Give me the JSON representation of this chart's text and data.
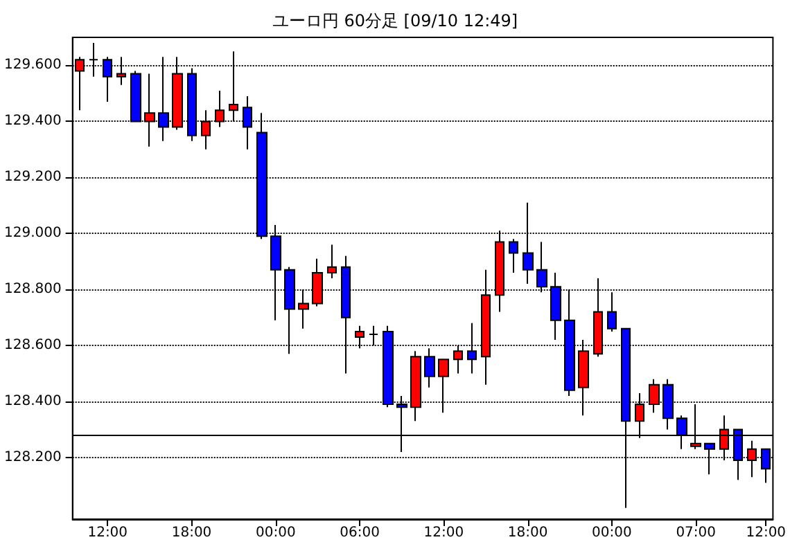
{
  "chart_data": {
    "type": "candlestick",
    "title": "ユーロ円 60分足 [09/10 12:49]",
    "categories": [
      null,
      null,
      "12:00",
      null,
      null,
      null,
      null,
      null,
      "18:00",
      null,
      null,
      null,
      null,
      null,
      "00:00",
      null,
      null,
      null,
      null,
      null,
      "06:00",
      null,
      null,
      null,
      null,
      null,
      "12:00",
      null,
      null,
      null,
      null,
      null,
      "18:00",
      null,
      null,
      null,
      null,
      null,
      "00:00",
      null,
      null,
      null,
      null,
      null,
      "07:00",
      null,
      null,
      null,
      null,
      "12:00"
    ],
    "ohlc": [
      [
        129.58,
        129.63,
        129.44,
        129.62
      ],
      [
        129.62,
        129.68,
        129.56,
        129.62
      ],
      [
        129.62,
        129.63,
        129.47,
        129.56
      ],
      [
        129.56,
        129.63,
        129.53,
        129.57
      ],
      [
        129.57,
        129.58,
        129.4,
        129.4
      ],
      [
        129.4,
        129.57,
        129.31,
        129.43
      ],
      [
        129.43,
        129.63,
        129.33,
        129.38
      ],
      [
        129.38,
        129.63,
        129.37,
        129.57
      ],
      [
        129.57,
        129.59,
        129.33,
        129.35
      ],
      [
        129.35,
        129.44,
        129.3,
        129.4
      ],
      [
        129.4,
        129.51,
        129.38,
        129.44
      ],
      [
        129.44,
        129.65,
        129.4,
        129.46
      ],
      [
        129.45,
        129.49,
        129.3,
        129.38
      ],
      [
        129.36,
        129.43,
        128.98,
        128.99
      ],
      [
        128.99,
        129.03,
        128.69,
        128.87
      ],
      [
        128.87,
        128.88,
        128.57,
        128.73
      ],
      [
        128.73,
        128.8,
        128.66,
        128.75
      ],
      [
        128.75,
        128.91,
        128.74,
        128.86
      ],
      [
        128.86,
        128.96,
        128.84,
        128.88
      ],
      [
        128.88,
        128.92,
        128.5,
        128.7
      ],
      [
        128.63,
        128.67,
        128.59,
        128.65
      ],
      [
        128.64,
        128.67,
        128.6,
        128.64
      ],
      [
        128.65,
        128.67,
        128.38,
        128.39
      ],
      [
        128.39,
        128.42,
        128.22,
        128.38
      ],
      [
        128.38,
        128.58,
        128.33,
        128.56
      ],
      [
        128.56,
        128.59,
        128.45,
        128.49
      ],
      [
        128.49,
        128.55,
        128.36,
        128.55
      ],
      [
        128.55,
        128.6,
        128.5,
        128.58
      ],
      [
        128.58,
        128.68,
        128.5,
        128.55
      ],
      [
        128.56,
        128.87,
        128.46,
        128.78
      ],
      [
        128.78,
        129.01,
        128.72,
        128.97
      ],
      [
        128.97,
        128.98,
        128.86,
        128.93
      ],
      [
        128.93,
        129.11,
        128.82,
        128.87
      ],
      [
        128.87,
        128.97,
        128.79,
        128.81
      ],
      [
        128.81,
        128.86,
        128.62,
        128.69
      ],
      [
        128.69,
        128.8,
        128.42,
        128.44
      ],
      [
        128.45,
        128.62,
        128.35,
        128.58
      ],
      [
        128.57,
        128.84,
        128.56,
        128.72
      ],
      [
        128.72,
        128.79,
        128.65,
        128.66
      ],
      [
        128.66,
        128.66,
        128.02,
        128.33
      ],
      [
        128.33,
        128.43,
        128.27,
        128.39
      ],
      [
        128.39,
        128.48,
        128.36,
        128.46
      ],
      [
        128.46,
        128.48,
        128.3,
        128.34
      ],
      [
        128.34,
        128.35,
        128.23,
        128.28
      ],
      [
        128.24,
        128.39,
        128.23,
        128.25
      ],
      [
        128.25,
        128.25,
        128.14,
        128.23
      ],
      [
        128.23,
        128.35,
        128.19,
        128.3
      ],
      [
        128.3,
        128.3,
        128.12,
        128.19
      ],
      [
        128.19,
        128.26,
        128.13,
        128.23
      ],
      [
        128.23,
        128.23,
        128.11,
        128.16
      ]
    ],
    "colors": [
      "#ff0000",
      "#000000",
      "#0000ff",
      "#ff0000",
      "#0000ff",
      "#ff0000",
      "#0000ff",
      "#ff0000",
      "#0000ff",
      "#ff0000",
      "#ff0000",
      "#ff0000",
      "#0000ff",
      "#0000ff",
      "#0000ff",
      "#0000ff",
      "#ff0000",
      "#ff0000",
      "#ff0000",
      "#0000ff",
      "#ff0000",
      "#000000",
      "#0000ff",
      "#0000ff",
      "#ff0000",
      "#0000ff",
      "#ff0000",
      "#ff0000",
      "#0000ff",
      "#ff0000",
      "#ff0000",
      "#0000ff",
      "#0000ff",
      "#0000ff",
      "#0000ff",
      "#0000ff",
      "#ff0000",
      "#ff0000",
      "#0000ff",
      "#0000ff",
      "#ff0000",
      "#ff0000",
      "#0000ff",
      "#0000ff",
      "#ff0000",
      "#0000ff",
      "#ff0000",
      "#0000ff",
      "#ff0000",
      "#0000ff"
    ],
    "ylim": [
      127.98,
      129.7
    ],
    "yticks": [
      {
        "value": 128.2,
        "label": "128.200"
      },
      {
        "value": 128.4,
        "label": "128.400"
      },
      {
        "value": 128.6,
        "label": "128.600"
      },
      {
        "value": 128.8,
        "label": "128.800"
      },
      {
        "value": 129.0,
        "label": "129.000"
      },
      {
        "value": 129.2,
        "label": "129.200"
      },
      {
        "value": 129.4,
        "label": "129.400"
      },
      {
        "value": 129.6,
        "label": "129.600"
      }
    ],
    "grid": "y",
    "ref_lines": [
      {
        "axis": "y",
        "value": 128.28,
        "color": "#000000",
        "line_style": "solid"
      }
    ]
  }
}
